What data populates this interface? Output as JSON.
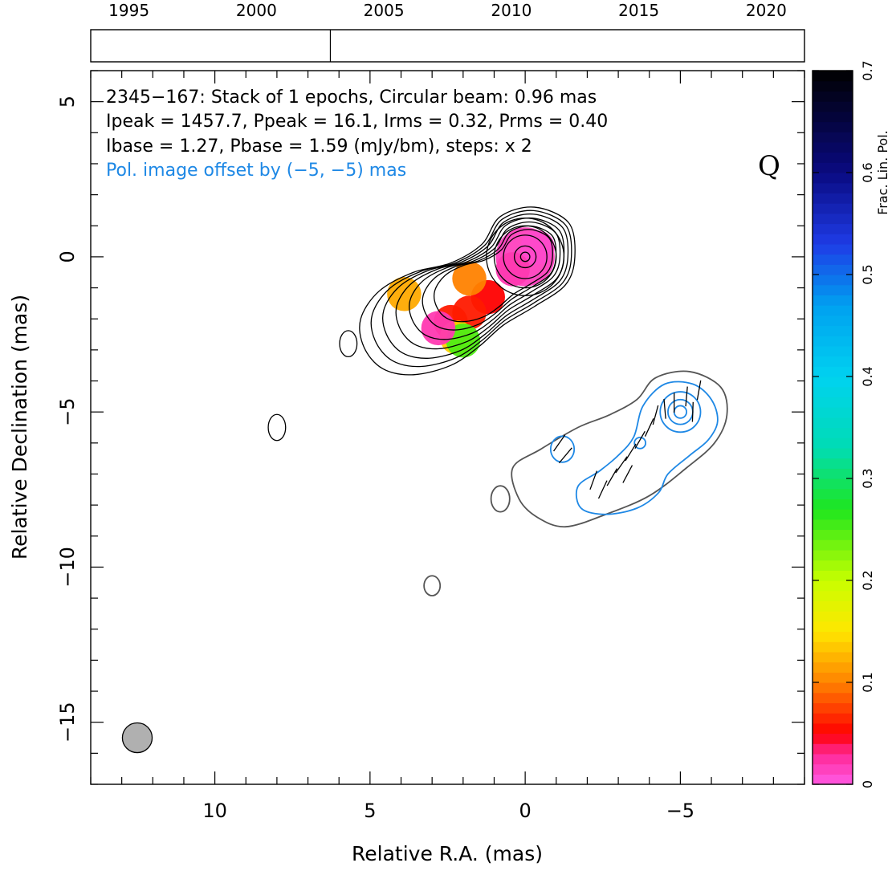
{
  "chart_data": {
    "type": "heatmap",
    "subtype": "vlbi-polarization-map",
    "source": "2345−167",
    "xlabel": "Relative R.A. (mas)",
    "ylabel": "Relative Declination (mas)",
    "xlim": [
      14,
      -9
    ],
    "ylim": [
      -17,
      6
    ],
    "x_ticks": [
      10,
      5,
      0,
      -5
    ],
    "x_tick_labels": [
      "10",
      "5",
      "0",
      "−5"
    ],
    "y_ticks": [
      5,
      0,
      -5,
      -10,
      -15
    ],
    "y_tick_labels": [
      "5",
      "0",
      "−5",
      "−10",
      "−15"
    ],
    "info_lines": [
      "2345−167: Stack of 1 epochs, Circular beam: 0.96 mas",
      "Ipeak = 1457.7, Ppeak = 16.1, Irms = 0.32, Prms = 0.40",
      "Ibase = 1.27, Pbase = 1.59 (mJy/bm), steps: x 2"
    ],
    "offset_note": "Pol. image offset by (−5, −5) mas",
    "stokes_label": "Q",
    "beam": {
      "diameter_mas": 0.96,
      "position_mas": [
        12.5,
        -15.5
      ]
    },
    "timeline": {
      "years": [
        1995,
        2000,
        2005,
        2010,
        2015,
        2020
      ],
      "range": [
        1993.5,
        2021.5
      ],
      "epochs": [
        2002.9
      ]
    },
    "colorbar": {
      "label": "Frac. Lin. Pol.",
      "range": [
        0,
        0.7
      ],
      "ticks": [
        0,
        0.1,
        0.2,
        0.3,
        0.4,
        0.5,
        0.6,
        0.7
      ],
      "tick_labels": [
        "0",
        "0.1",
        "0.2",
        "0.3",
        "0.4",
        "0.5",
        "0.6",
        "0.7"
      ]
    },
    "stokes_i_contours": {
      "color": "#000000",
      "center_mas": [
        0,
        0
      ],
      "circle_radii_mas": [
        0.35,
        0.7,
        1.0,
        1.25
      ],
      "envelope_scales": [
        0.55,
        0.62,
        0.7,
        0.78,
        0.86,
        0.93,
        1.0
      ],
      "isolated_blobs_mas": [
        [
          5.7,
          -2.8
        ],
        [
          8.0,
          -5.5
        ]
      ]
    },
    "fractional_pol_map": [
      {
        "x": 0.0,
        "y": 0.0,
        "frac": 0.015
      },
      {
        "x": -0.4,
        "y": 0.3,
        "frac": 0.01
      },
      {
        "x": 0.4,
        "y": -0.4,
        "frac": 0.02
      },
      {
        "x": 1.2,
        "y": -1.3,
        "frac": 0.05
      },
      {
        "x": 1.8,
        "y": -1.8,
        "frac": 0.06
      },
      {
        "x": 2.4,
        "y": -2.1,
        "frac": 0.06
      },
      {
        "x": 3.9,
        "y": -1.2,
        "frac": 0.12
      },
      {
        "x": 1.8,
        "y": -0.7,
        "frac": 0.1
      },
      {
        "x": 2.2,
        "y": -2.6,
        "frac": 0.14
      },
      {
        "x": 2.0,
        "y": -2.7,
        "frac": 0.25
      },
      {
        "x": 2.8,
        "y": -2.3,
        "frac": 0.02
      }
    ],
    "pol_intensity_contours": {
      "offset_mas": [
        -5,
        -5
      ],
      "grey_outer_color": "#555555",
      "blue_color": "#1e88e5",
      "isolated_blob_mas": [
        3.0,
        -10.6
      ],
      "outer_isolated_mas": [
        0.8,
        -7.8
      ]
    },
    "evpa_vectors": [
      {
        "x": -5.6,
        "y": -4.3,
        "angle_deg": 80
      },
      {
        "x": -5.2,
        "y": -4.5,
        "angle_deg": 85
      },
      {
        "x": -4.8,
        "y": -4.7,
        "angle_deg": 90
      },
      {
        "x": -4.5,
        "y": -4.9,
        "angle_deg": 95
      },
      {
        "x": -5.4,
        "y": -5.0,
        "angle_deg": 88
      },
      {
        "x": -4.2,
        "y": -5.1,
        "angle_deg": 75
      },
      {
        "x": -4.0,
        "y": -5.5,
        "angle_deg": 65
      },
      {
        "x": -3.7,
        "y": -5.9,
        "angle_deg": 60
      },
      {
        "x": -3.4,
        "y": -6.3,
        "angle_deg": 58
      },
      {
        "x": -3.1,
        "y": -6.7,
        "angle_deg": 55
      },
      {
        "x": -2.8,
        "y": -7.1,
        "angle_deg": 60
      },
      {
        "x": -2.5,
        "y": -7.5,
        "angle_deg": 65
      },
      {
        "x": -3.3,
        "y": -7.0,
        "angle_deg": 62
      },
      {
        "x": -2.2,
        "y": -7.2,
        "angle_deg": 70
      },
      {
        "x": -1.1,
        "y": -6.0,
        "angle_deg": 55
      },
      {
        "x": -1.3,
        "y": -6.4,
        "angle_deg": 50
      }
    ]
  }
}
